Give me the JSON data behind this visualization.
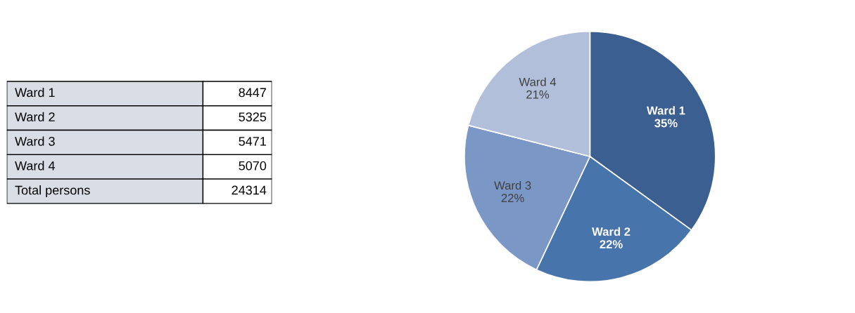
{
  "chart_data": [
    {
      "type": "other",
      "categories": [
        "Ward 1",
        "Ward 2",
        "Ward 3",
        "Ward 4"
      ],
      "values": [
        8447,
        5325,
        5471,
        5070
      ],
      "data_labels": true,
      "totals": [
        "24314"
      ],
      "annotations": [
        "Total persons"
      ]
    },
    {
      "type": "pie",
      "categories": [
        "Ward 1",
        "Ward 2",
        "Ward 3",
        "Ward 4"
      ],
      "values": [
        35,
        22,
        22,
        21
      ],
      "colors": [
        "#3b5f90",
        "#4874ac",
        "#7a97c6",
        "#b1bfda"
      ],
      "value_labels": [
        "35%",
        "22%",
        "22%",
        "21%"
      ]
    }
  ]
}
